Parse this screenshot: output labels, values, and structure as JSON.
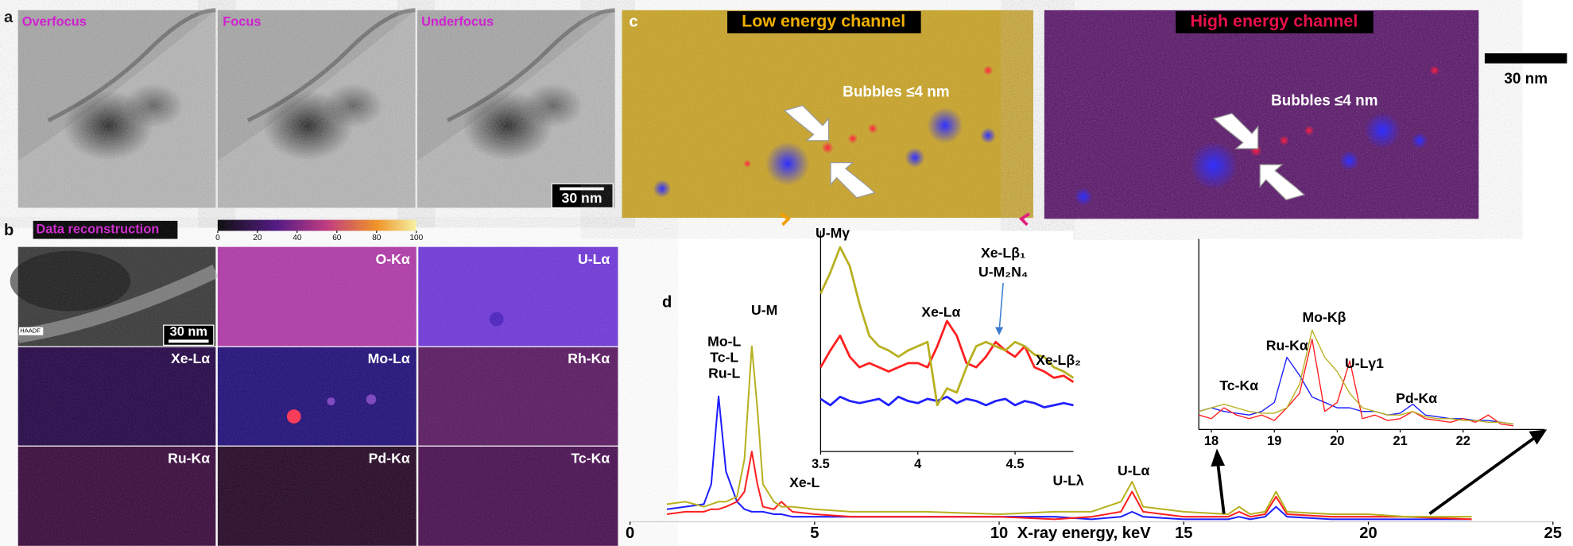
{
  "panels": {
    "a": {
      "label": "a",
      "images": [
        "Overfocus",
        "Focus",
        "Underfocus"
      ],
      "scale_bar": "30 nm"
    },
    "b": {
      "label": "b",
      "title": "Data reconstruction",
      "colorbar_ticks": [
        0,
        20,
        40,
        60,
        80,
        100
      ],
      "maps": [
        "HAADF",
        "O-Kα",
        "U-Lα",
        "Xe-Lα",
        "Mo-Lα",
        "Rh-Kα",
        "Ru-Kα",
        "Pd-Kα",
        "Tc-Kα"
      ],
      "scale_bar": "30 nm"
    },
    "c": {
      "label": "c",
      "channels": [
        "Low energy channel",
        "High energy channel"
      ],
      "annotation": "Bubbles ≤4 nm",
      "scale_bar": "30 nm"
    },
    "d": {
      "label": "d"
    }
  },
  "chart_data": [
    {
      "type": "line",
      "xlabel": "X-ray energy, keV",
      "xlim": [
        0,
        25
      ],
      "xticks": [
        0,
        5,
        10,
        15,
        20,
        25
      ],
      "ylim": [
        0,
        100
      ],
      "annotations": [
        "Mo-L",
        "Tc-L",
        "Ru-L",
        "U-M",
        "Xe-L",
        "U-Lλ",
        "U-Lα"
      ],
      "x": [
        1,
        1.5,
        2,
        2.2,
        2.4,
        2.6,
        2.9,
        3.1,
        3.3,
        3.45,
        3.6,
        3.9,
        4.1,
        4.4,
        5,
        6,
        8,
        10,
        11.5,
        12.5,
        13.3,
        13.6,
        13.9,
        15,
        16.2,
        16.5,
        16.8,
        17.2,
        17.5,
        17.8,
        19,
        20,
        21,
        22.8
      ],
      "series": [
        {
          "color": "#1f1fff",
          "values": [
            5,
            6,
            7,
            15,
            50,
            20,
            8,
            5,
            4,
            4,
            4,
            3,
            3,
            2,
            2,
            2,
            2,
            2,
            2,
            1,
            2,
            4,
            2,
            1,
            1,
            2,
            1,
            2,
            6,
            2,
            1,
            1,
            1,
            1
          ]
        },
        {
          "color": "#ff1f1f",
          "values": [
            3,
            4,
            4,
            5,
            5,
            6,
            8,
            12,
            28,
            15,
            6,
            5,
            8,
            4,
            3,
            2,
            2,
            2,
            1,
            2,
            4,
            12,
            4,
            2,
            2,
            4,
            2,
            3,
            10,
            3,
            2,
            2,
            2,
            1
          ]
        },
        {
          "color": "#b8b020",
          "values": [
            7,
            8,
            6,
            7,
            8,
            8,
            10,
            25,
            70,
            45,
            15,
            8,
            6,
            6,
            5,
            4,
            4,
            3,
            4,
            4,
            8,
            16,
            6,
            4,
            3,
            6,
            3,
            4,
            12,
            4,
            3,
            3,
            2,
            2
          ]
        }
      ]
    },
    {
      "type": "line",
      "xlim": [
        3.5,
        4.8
      ],
      "xticks": [
        3.5,
        4,
        4.5
      ],
      "ylim": [
        0,
        100
      ],
      "annotations": [
        "U-Mγ",
        "Xe-Lα",
        "Xe-Lβ₁",
        "U-M₂N₄",
        "Xe-Lβ₂"
      ],
      "x": [
        3.5,
        3.55,
        3.6,
        3.65,
        3.7,
        3.75,
        3.8,
        3.85,
        3.9,
        3.95,
        4,
        4.05,
        4.1,
        4.15,
        4.2,
        4.25,
        4.3,
        4.35,
        4.4,
        4.45,
        4.5,
        4.55,
        4.6,
        4.65,
        4.7,
        4.75,
        4.8
      ],
      "series": [
        {
          "color": "#1f1fff",
          "values": [
            25,
            22,
            26,
            24,
            23,
            24,
            25,
            22,
            26,
            24,
            23,
            25,
            24,
            26,
            23,
            25,
            24,
            22,
            24,
            25,
            22,
            24,
            23,
            21,
            22,
            23,
            22
          ]
        },
        {
          "color": "#ff1f1f",
          "values": [
            40,
            48,
            55,
            45,
            40,
            42,
            40,
            38,
            40,
            42,
            42,
            40,
            50,
            62,
            55,
            42,
            40,
            45,
            52,
            48,
            45,
            50,
            40,
            38,
            35,
            36,
            33
          ]
        },
        {
          "color": "#b8b020",
          "values": [
            75,
            85,
            97,
            88,
            70,
            55,
            50,
            48,
            45,
            48,
            50,
            52,
            22,
            30,
            28,
            40,
            50,
            52,
            50,
            48,
            52,
            50,
            46,
            45,
            40,
            38,
            35
          ]
        }
      ]
    },
    {
      "type": "line",
      "xlim": [
        17.8,
        23.3
      ],
      "xticks": [
        18,
        19,
        20,
        21,
        22
      ],
      "ylim": [
        0,
        100
      ],
      "annotations": [
        "Tc-Kα",
        "Ru-Kα",
        "Mo-Kβ",
        "U-Lγ1",
        "Pd-Kα"
      ],
      "x": [
        17.8,
        18,
        18.2,
        18.4,
        18.6,
        18.8,
        19,
        19.2,
        19.4,
        19.6,
        19.8,
        20,
        20.2,
        20.4,
        20.6,
        20.8,
        21,
        21.2,
        21.4,
        21.6,
        21.8,
        22,
        22.2,
        22.4,
        22.6,
        22.8
      ],
      "series": [
        {
          "color": "#1f1fff",
          "values": [
            10,
            12,
            10,
            9,
            8,
            10,
            15,
            40,
            30,
            18,
            15,
            12,
            12,
            10,
            10,
            8,
            9,
            14,
            8,
            7,
            6,
            6,
            5,
            5,
            4,
            3
          ]
        },
        {
          "color": "#ff1f1f",
          "values": [
            8,
            6,
            12,
            8,
            6,
            8,
            5,
            12,
            20,
            50,
            10,
            15,
            38,
            6,
            8,
            5,
            6,
            10,
            6,
            5,
            4,
            6,
            4,
            8,
            3,
            2
          ]
        },
        {
          "color": "#b8b020",
          "values": [
            10,
            12,
            14,
            12,
            10,
            9,
            9,
            12,
            25,
            55,
            40,
            32,
            20,
            12,
            10,
            8,
            8,
            10,
            7,
            6,
            6,
            5,
            5,
            4,
            4,
            3
          ]
        }
      ]
    }
  ]
}
